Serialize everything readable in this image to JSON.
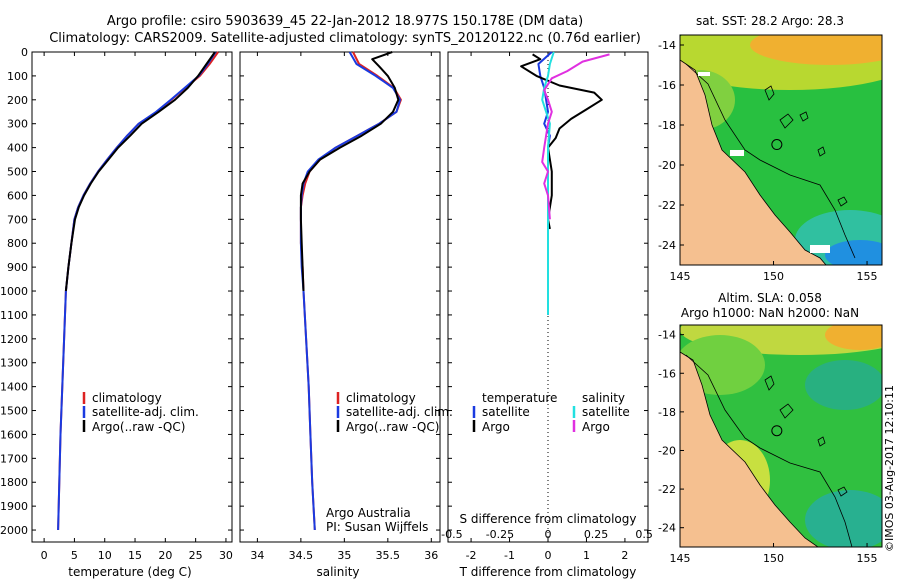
{
  "header": {
    "title_line1": "Argo profile: csiro 5903639_45 22-Jan-2012 18.977S 150.178E (DM data)",
    "title_line2": "Climatology: CARS2009. Satellite-adjusted climatology: synTS_20120122.nc (0.76d earlier)"
  },
  "colors": {
    "climatology": "#dd2222",
    "satellite": "#1a3ae0",
    "argo": "#000000",
    "sal_satellite": "#22e0e0",
    "sal_argo": "#e030e0",
    "land": "#f5c090"
  },
  "depth_ticks": [
    "0",
    "100",
    "200",
    "300",
    "400",
    "500",
    "600",
    "700",
    "800",
    "900",
    "1000",
    "1100",
    "1200",
    "1300",
    "1400",
    "1500",
    "1600",
    "1700",
    "1800",
    "1900",
    "2000"
  ],
  "legend": {
    "climatology": "climatology",
    "satellite": "satellite-adj. clim.",
    "argo": "Argo(..raw -QC)"
  },
  "legend_diff": {
    "temperature": "temperature",
    "salinity": "salinity",
    "satellite": "satellite",
    "argo": "Argo"
  },
  "credit": {
    "line1": "Argo Australia",
    "line2": "PI: Susan Wijffels"
  },
  "diff_top_label": "S difference from climatology",
  "watermark": "©IMOS 03-Aug-2017 12:10:11",
  "chart_data": [
    {
      "type": "line",
      "id": "temperature",
      "xlabel": "temperature (deg C)",
      "xlim": [
        -2,
        31
      ],
      "ylim": [
        2050,
        0
      ],
      "xticks": [
        "0",
        "5",
        "10",
        "15",
        "20",
        "25",
        "30"
      ],
      "series": [
        {
          "name": "climatology",
          "color": "#dd2222",
          "points": [
            [
              28.7,
              0
            ],
            [
              27.3,
              50
            ],
            [
              25.7,
              100
            ],
            [
              23.3,
              150
            ],
            [
              21.0,
              200
            ],
            [
              18.6,
              250
            ],
            [
              15.6,
              300
            ],
            [
              13.7,
              350
            ],
            [
              12.0,
              400
            ],
            [
              10.4,
              450
            ],
            [
              8.9,
              500
            ],
            [
              7.6,
              550
            ],
            [
              6.5,
              600
            ],
            [
              5.6,
              650
            ],
            [
              5.0,
              700
            ],
            [
              4.5,
              800
            ],
            [
              4.0,
              900
            ],
            [
              3.6,
              1000
            ],
            [
              3.3,
              1200
            ],
            [
              3.0,
              1400
            ],
            [
              2.7,
              1600
            ],
            [
              2.5,
              1800
            ],
            [
              2.3,
              2000
            ]
          ]
        },
        {
          "name": "satellite-adj. clim.",
          "color": "#1a3ae0",
          "points": [
            [
              28.3,
              0
            ],
            [
              27.0,
              50
            ],
            [
              25.5,
              100
            ],
            [
              23.2,
              150
            ],
            [
              20.9,
              200
            ],
            [
              18.5,
              250
            ],
            [
              15.6,
              300
            ],
            [
              13.7,
              350
            ],
            [
              12.0,
              400
            ],
            [
              10.4,
              450
            ],
            [
              8.9,
              500
            ],
            [
              7.6,
              550
            ],
            [
              6.5,
              600
            ],
            [
              5.6,
              650
            ],
            [
              5.0,
              700
            ],
            [
              4.5,
              800
            ],
            [
              4.0,
              900
            ],
            [
              3.6,
              1000
            ],
            [
              3.3,
              1200
            ],
            [
              3.0,
              1400
            ],
            [
              2.7,
              1600
            ],
            [
              2.5,
              1800
            ],
            [
              2.3,
              2000
            ]
          ]
        },
        {
          "name": "Argo(..raw -QC)",
          "color": "#000000",
          "points": [
            [
              28.2,
              0
            ],
            [
              26.8,
              50
            ],
            [
              25.4,
              100
            ],
            [
              23.7,
              150
            ],
            [
              21.6,
              200
            ],
            [
              18.9,
              250
            ],
            [
              16.1,
              300
            ],
            [
              14.2,
              350
            ],
            [
              12.2,
              400
            ],
            [
              10.6,
              450
            ],
            [
              9.0,
              500
            ],
            [
              7.7,
              550
            ],
            [
              6.6,
              600
            ],
            [
              5.7,
              650
            ],
            [
              5.1,
              700
            ],
            [
              4.5,
              800
            ],
            [
              4.0,
              900
            ],
            [
              3.6,
              1000
            ]
          ]
        }
      ]
    },
    {
      "type": "line",
      "id": "salinity",
      "xlabel": "salinity",
      "xlim": [
        33.8,
        36.1
      ],
      "ylim": [
        2050,
        0
      ],
      "xticks": [
        "34",
        "34.5",
        "35",
        "35.5",
        "36"
      ],
      "series": [
        {
          "name": "climatology",
          "color": "#dd2222",
          "points": [
            [
              35.1,
              0
            ],
            [
              35.17,
              50
            ],
            [
              35.38,
              100
            ],
            [
              35.57,
              150
            ],
            [
              35.65,
              200
            ],
            [
              35.6,
              250
            ],
            [
              35.4,
              300
            ],
            [
              35.15,
              350
            ],
            [
              34.9,
              400
            ],
            [
              34.72,
              450
            ],
            [
              34.6,
              500
            ],
            [
              34.55,
              550
            ],
            [
              34.52,
              600
            ],
            [
              34.5,
              650
            ],
            [
              34.5,
              700
            ],
            [
              34.5,
              800
            ],
            [
              34.52,
              900
            ],
            [
              34.53,
              1000
            ],
            [
              34.56,
              1200
            ],
            [
              34.59,
              1400
            ],
            [
              34.61,
              1600
            ],
            [
              34.63,
              1800
            ],
            [
              34.66,
              2000
            ]
          ]
        },
        {
          "name": "satellite-adj. clim.",
          "color": "#1a3ae0",
          "points": [
            [
              35.06,
              0
            ],
            [
              35.14,
              50
            ],
            [
              35.36,
              100
            ],
            [
              35.56,
              150
            ],
            [
              35.64,
              200
            ],
            [
              35.6,
              250
            ],
            [
              35.4,
              300
            ],
            [
              35.15,
              350
            ],
            [
              34.9,
              400
            ],
            [
              34.7,
              450
            ],
            [
              34.58,
              500
            ],
            [
              34.53,
              550
            ],
            [
              34.51,
              600
            ],
            [
              34.5,
              650
            ],
            [
              34.5,
              700
            ],
            [
              34.5,
              800
            ],
            [
              34.51,
              900
            ],
            [
              34.53,
              1000
            ],
            [
              34.56,
              1200
            ],
            [
              34.59,
              1400
            ],
            [
              34.61,
              1600
            ],
            [
              34.63,
              1800
            ],
            [
              34.66,
              2000
            ]
          ]
        },
        {
          "name": "Argo(..raw -QC)",
          "color": "#000000",
          "points": [
            [
              35.55,
              0
            ],
            [
              35.32,
              30
            ],
            [
              35.4,
              60
            ],
            [
              35.5,
              100
            ],
            [
              35.58,
              150
            ],
            [
              35.62,
              200
            ],
            [
              35.56,
              250
            ],
            [
              35.42,
              300
            ],
            [
              35.2,
              350
            ],
            [
              34.95,
              400
            ],
            [
              34.72,
              450
            ],
            [
              34.6,
              500
            ],
            [
              34.52,
              550
            ],
            [
              34.5,
              600
            ],
            [
              34.5,
              700
            ],
            [
              34.51,
              800
            ],
            [
              34.52,
              900
            ],
            [
              34.53,
              1000
            ]
          ]
        }
      ]
    },
    {
      "type": "line",
      "id": "difference",
      "xlabel": "T difference from climatology",
      "xlim": [
        -2.6,
        2.6
      ],
      "ylim": [
        2050,
        0
      ],
      "xticks": [
        "-2",
        "-1",
        "0",
        "1",
        "2"
      ],
      "top_xticks": [
        "-0.5",
        "-0.25",
        "0",
        "0.25",
        "0.5"
      ],
      "series": [
        {
          "name": "temperature satellite",
          "color": "#1a3ae0",
          "points": [
            [
              0.1,
              0
            ],
            [
              -0.25,
              50
            ],
            [
              -0.2,
              100
            ],
            [
              -0.1,
              150
            ],
            [
              -0.05,
              200
            ],
            [
              0.0,
              250
            ],
            [
              -0.1,
              300
            ],
            [
              0.05,
              350
            ],
            [
              0.0,
              400
            ],
            [
              0.0,
              500
            ],
            [
              0.0,
              700
            ],
            [
              0.0,
              900
            ],
            [
              0.0,
              1100
            ]
          ]
        },
        {
          "name": "temperature Argo",
          "color": "#000000",
          "points": [
            [
              -0.4,
              10
            ],
            [
              -0.2,
              30
            ],
            [
              -0.7,
              60
            ],
            [
              -0.3,
              100
            ],
            [
              0.3,
              140
            ],
            [
              1.2,
              170
            ],
            [
              1.4,
              200
            ],
            [
              1.0,
              240
            ],
            [
              0.6,
              280
            ],
            [
              0.3,
              320
            ],
            [
              0.2,
              360
            ],
            [
              0.0,
              400
            ],
            [
              0.1,
              500
            ],
            [
              0.1,
              600
            ],
            [
              0.0,
              700
            ],
            [
              0.05,
              740
            ]
          ]
        },
        {
          "name": "salinity satellite",
          "color": "#22e0e0",
          "points": [
            [
              0.15,
              0
            ],
            [
              0.05,
              50
            ],
            [
              0.0,
              100
            ],
            [
              -0.1,
              150
            ],
            [
              -0.15,
              200
            ],
            [
              -0.05,
              250
            ],
            [
              0.05,
              300
            ],
            [
              0.0,
              400
            ],
            [
              0.0,
              600
            ],
            [
              0.0,
              800
            ],
            [
              0.0,
              1000
            ],
            [
              0.0,
              1100
            ]
          ]
        },
        {
          "name": "salinity Argo",
          "color": "#e030e0",
          "points": [
            [
              1.6,
              10
            ],
            [
              0.9,
              40
            ],
            [
              0.5,
              80
            ],
            [
              0.1,
              110
            ],
            [
              -0.1,
              160
            ],
            [
              0.0,
              200
            ],
            [
              0.1,
              250
            ],
            [
              0.0,
              300
            ],
            [
              -0.1,
              400
            ],
            [
              -0.15,
              460
            ],
            [
              0.0,
              500
            ],
            [
              -0.1,
              550
            ],
            [
              0.0,
              600
            ],
            [
              0.05,
              700
            ]
          ]
        }
      ]
    },
    {
      "type": "heatmap",
      "id": "sst-map",
      "title": "sat. SST: 28.2  Argo: 28.3",
      "xticks": [
        "145",
        "150",
        "155"
      ],
      "yticks": [
        "-14",
        "-16",
        "-18",
        "-20",
        "-22",
        "-24"
      ],
      "xlim": [
        145,
        155.8
      ],
      "ylim": [
        -13.5,
        -25
      ],
      "argo_position": [
        150.178,
        -18.977
      ]
    },
    {
      "type": "heatmap",
      "id": "sla-map",
      "title": "Altim. SLA: 0.058",
      "subtitle": "Argo h1000: NaN h2000: NaN",
      "xticks": [
        "145",
        "150",
        "155"
      ],
      "yticks": [
        "-14",
        "-16",
        "-18",
        "-20",
        "-22",
        "-24"
      ],
      "xlim": [
        145,
        155.8
      ],
      "ylim": [
        -13.5,
        -25
      ],
      "argo_position": [
        150.178,
        -18.977
      ]
    }
  ]
}
